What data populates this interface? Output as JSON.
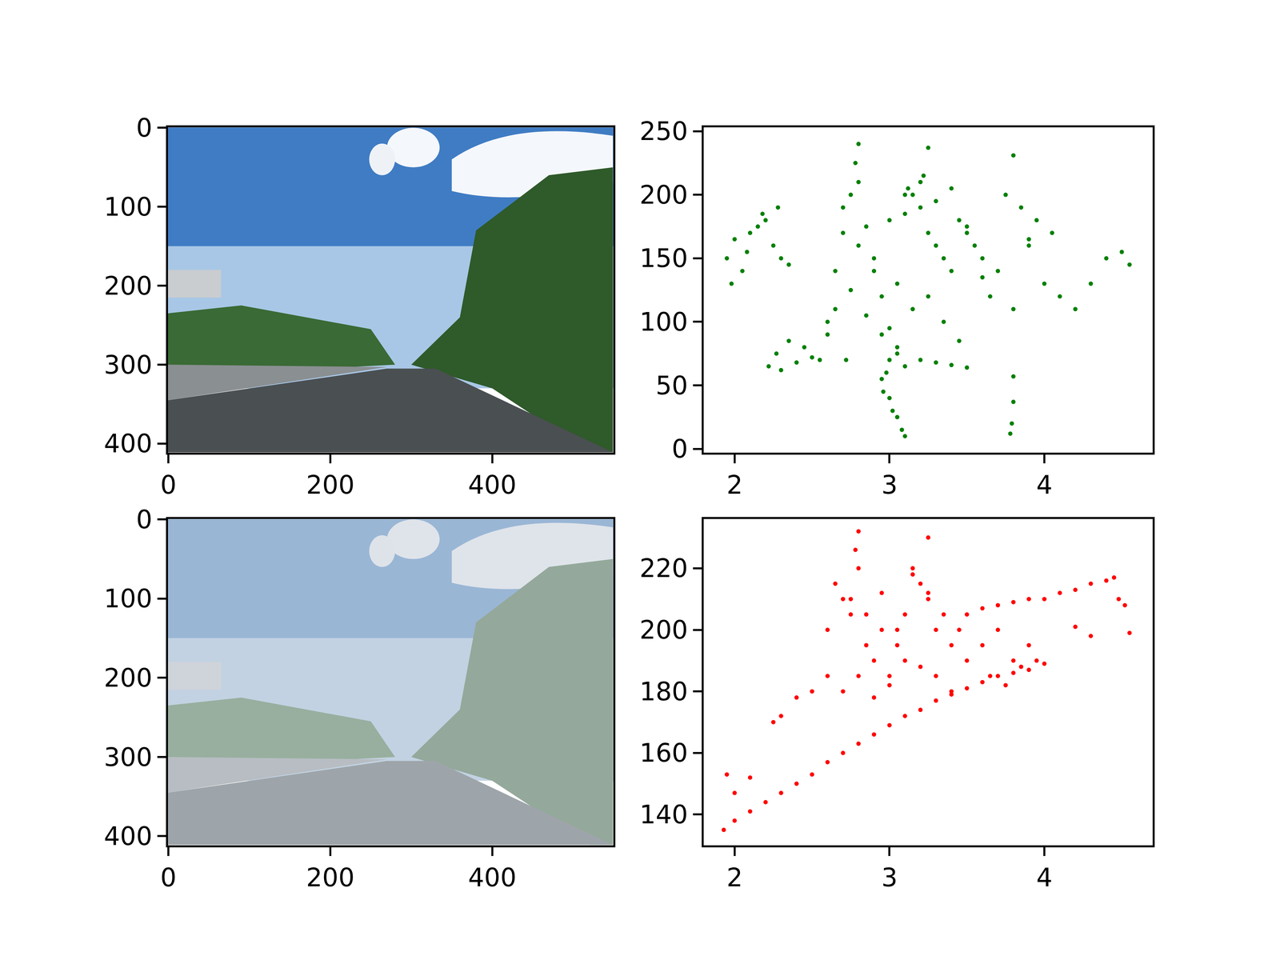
{
  "chart_data": [
    {
      "type": "image",
      "xlim": [
        -0.5,
        549.5
      ],
      "ylim": [
        411.5,
        -0.5
      ],
      "xticks": [
        0,
        200,
        400
      ],
      "yticks": [
        0,
        100,
        200,
        300,
        400
      ]
    },
    {
      "type": "scatter",
      "color": "#008000",
      "marker": "circle",
      "xlim": [
        1.8,
        4.7
      ],
      "ylim": [
        -3,
        253
      ],
      "xticks": [
        2,
        3,
        4
      ],
      "yticks": [
        0,
        50,
        100,
        150,
        200,
        250
      ],
      "x": [
        1.95,
        2.0,
        2.05,
        2.1,
        2.15,
        2.2,
        2.25,
        2.3,
        1.98,
        2.08,
        2.18,
        2.28,
        2.35,
        2.22,
        2.27,
        2.35,
        2.45,
        2.55,
        2.6,
        2.3,
        2.4,
        2.5,
        2.6,
        2.65,
        2.7,
        2.75,
        2.8,
        2.85,
        2.9,
        2.95,
        3.0,
        3.05,
        3.1,
        3.15,
        3.2,
        3.25,
        3.3,
        3.35,
        3.4,
        3.45,
        3.5,
        3.55,
        3.6,
        2.65,
        2.75,
        2.85,
        2.95,
        3.05,
        3.15,
        3.25,
        3.35,
        3.45,
        2.7,
        2.8,
        2.9,
        3.0,
        3.1,
        3.2,
        3.3,
        3.4,
        2.95,
        3.0,
        3.05,
        3.1,
        2.98,
        3.02,
        3.08,
        2.96,
        3.0,
        3.05,
        3.1,
        3.2,
        3.3,
        3.4,
        3.5,
        3.65,
        3.7,
        3.8,
        3.9,
        4.0,
        4.1,
        4.2,
        4.3,
        4.4,
        4.5,
        4.55,
        3.75,
        3.85,
        3.95,
        4.05,
        3.78,
        3.79,
        3.8,
        3.8,
        2.8,
        3.25,
        3.8,
        2.78,
        3.22,
        3.5,
        3.6,
        3.9,
        2.72,
        3.12
      ],
      "y": [
        150,
        165,
        140,
        170,
        175,
        180,
        160,
        150,
        130,
        155,
        185,
        190,
        145,
        65,
        75,
        85,
        80,
        70,
        90,
        62,
        68,
        72,
        100,
        140,
        170,
        200,
        210,
        175,
        150,
        120,
        95,
        130,
        185,
        200,
        190,
        170,
        160,
        150,
        140,
        180,
        170,
        160,
        150,
        110,
        125,
        105,
        90,
        80,
        110,
        120,
        100,
        85,
        190,
        160,
        140,
        180,
        200,
        210,
        195,
        205,
        55,
        40,
        25,
        10,
        60,
        30,
        15,
        45,
        70,
        75,
        65,
        70,
        68,
        66,
        64,
        120,
        140,
        110,
        160,
        130,
        120,
        110,
        130,
        150,
        155,
        145,
        200,
        190,
        180,
        170,
        12,
        20,
        37,
        57,
        240,
        237,
        231,
        225,
        215,
        175,
        135,
        165,
        70,
        205
      ]
    },
    {
      "type": "image",
      "xlim": [
        -0.5,
        549.5
      ],
      "ylim": [
        411.5,
        -0.5
      ],
      "xticks": [
        0,
        200,
        400
      ],
      "yticks": [
        0,
        100,
        200,
        300,
        400
      ]
    },
    {
      "type": "scatter",
      "color": "#ff0000",
      "marker": "circle",
      "xlim": [
        1.8,
        4.7
      ],
      "ylim": [
        130,
        236
      ],
      "xticks": [
        2,
        3,
        4
      ],
      "yticks": [
        140,
        160,
        180,
        200,
        220
      ],
      "x": [
        1.93,
        2.0,
        2.1,
        2.2,
        2.3,
        2.4,
        2.5,
        2.6,
        2.7,
        2.8,
        2.9,
        3.0,
        3.1,
        3.2,
        3.3,
        3.4,
        3.5,
        3.6,
        3.7,
        3.8,
        3.9,
        4.0,
        3.5,
        3.6,
        3.7,
        3.8,
        3.9,
        4.0,
        4.1,
        4.2,
        4.3,
        4.4,
        4.45,
        2.6,
        2.65,
        2.7,
        2.75,
        2.8,
        2.85,
        2.9,
        2.95,
        3.0,
        3.05,
        3.1,
        3.15,
        3.2,
        3.25,
        3.3,
        3.35,
        3.4,
        3.45,
        3.5,
        2.7,
        2.8,
        2.9,
        3.0,
        3.1,
        3.2,
        3.3,
        3.4,
        2.75,
        2.85,
        2.95,
        3.05,
        3.15,
        3.25,
        2.25,
        2.3,
        2.4,
        2.5,
        2.6,
        2.1,
        2.0,
        1.95,
        3.6,
        3.7,
        3.8,
        3.9,
        3.65,
        3.75,
        3.85,
        3.95,
        2.8,
        3.25,
        2.78,
        4.55,
        4.52,
        4.3,
        4.2,
        4.48
      ],
      "y": [
        135,
        138,
        141,
        144,
        147,
        150,
        153,
        157,
        160,
        163,
        166,
        169,
        172,
        174,
        177,
        179,
        181,
        183,
        185,
        186,
        187,
        189,
        205,
        207,
        208,
        209,
        210,
        210,
        212,
        213,
        215,
        216,
        217,
        200,
        215,
        210,
        205,
        220,
        195,
        190,
        200,
        185,
        195,
        205,
        220,
        215,
        210,
        200,
        205,
        195,
        200,
        190,
        180,
        185,
        178,
        182,
        190,
        188,
        185,
        180,
        210,
        205,
        212,
        200,
        218,
        212,
        170,
        172,
        178,
        180,
        185,
        152,
        147,
        153,
        195,
        200,
        190,
        195,
        185,
        182,
        188,
        190,
        232,
        230,
        226,
        199,
        208,
        198,
        201,
        210
      ]
    }
  ]
}
